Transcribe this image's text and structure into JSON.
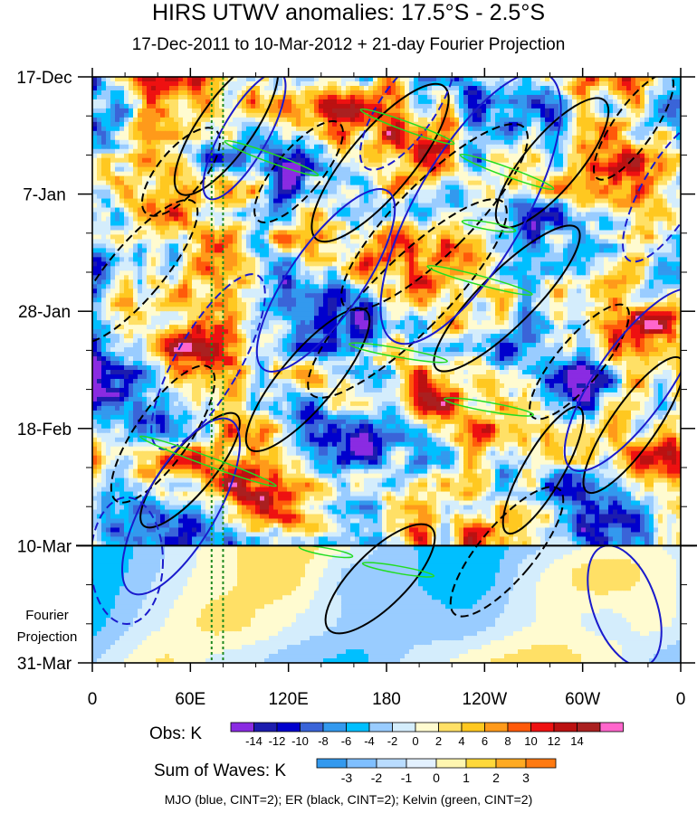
{
  "chart_data": {
    "type": "heatmap",
    "title": "HIRS UTWV anomalies: 17.5°S - 2.5°S",
    "subtitle": "17-Dec-2011 to 10-Mar-2012 + 21-day Fourier Projection",
    "x_axis": {
      "ticks": [
        "0",
        "60E",
        "120E",
        "180",
        "120W",
        "60W",
        "0"
      ],
      "tick_values_deg_east": [
        0,
        60,
        120,
        180,
        240,
        300,
        360
      ],
      "range_deg_east": [
        0,
        360
      ]
    },
    "y_axis": {
      "ticks": [
        "17-Dec",
        "7-Jan",
        "28-Jan",
        "18-Feb",
        "10-Mar",
        "31-Mar"
      ],
      "tick_days_since_start": [
        0,
        21,
        42,
        63,
        84,
        105
      ],
      "range_days": [
        0,
        105
      ],
      "direction": "time increases downward"
    },
    "projection_boundary": {
      "label": "10-Mar",
      "day": 84
    },
    "projection_label": "Fourier\nProjection",
    "reference_lines_deg_east": [
      73,
      80
    ],
    "obs_colorbar": {
      "label": "Obs: K",
      "levels": [
        "-14",
        "-12",
        "-10",
        "-8",
        "-6",
        "-4",
        "-2",
        "0",
        "2",
        "4",
        "6",
        "8",
        "10",
        "12",
        "14"
      ],
      "colors": [
        "#8a2be2",
        "#1c1cae",
        "#0000cd",
        "#3a64d8",
        "#3399ee",
        "#00bfff",
        "#99ccff",
        "#d4edfc",
        "#fffbd0",
        "#ffe066",
        "#ffc820",
        "#ff9a1a",
        "#ff5a0a",
        "#ee1111",
        "#bb1111",
        "#aa2020",
        "#ff66cc"
      ]
    },
    "waves_colorbar": {
      "label": "Sum of Waves: K",
      "levels": [
        "-3",
        "-2",
        "-1",
        "0",
        "1",
        "2",
        "3"
      ],
      "colors": [
        "#3399ee",
        "#7fbfff",
        "#b9dcff",
        "#e3f1ff",
        "#fff6b0",
        "#ffd83a",
        "#ffaa22",
        "#ff7a12"
      ]
    },
    "contour_legend": "MJO (blue, CINT=2); ER (black, CINT=2); Kelvin (green, CINT=2)"
  }
}
